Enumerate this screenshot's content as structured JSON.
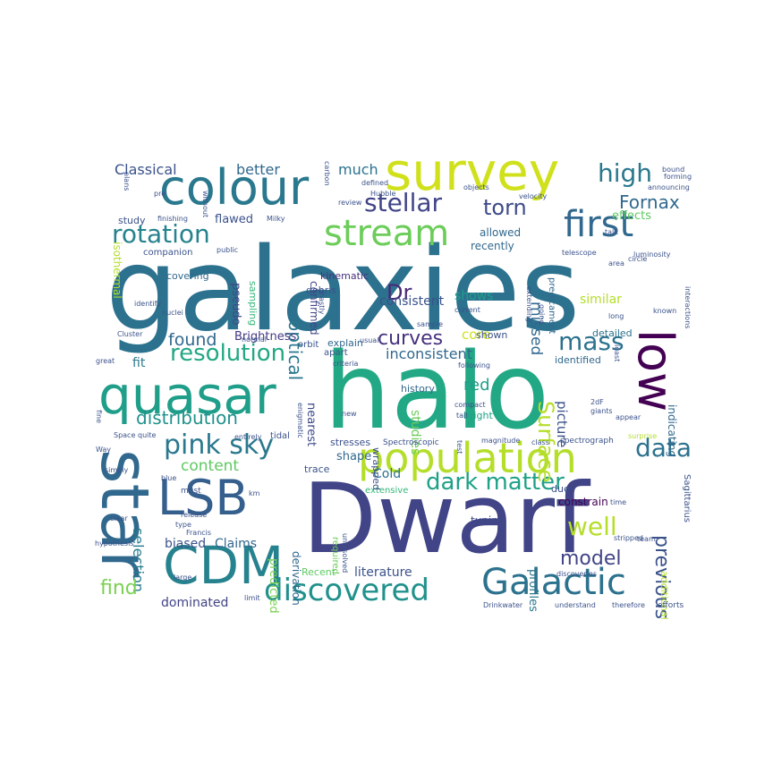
{
  "words": [
    {
      "text": "galaxies",
      "color": "#2c728e"
    },
    {
      "text": "Dwarf",
      "color": "#414487"
    },
    {
      "text": "halo",
      "color": "#22a884"
    },
    {
      "text": "survey",
      "color": "#d0e11c"
    },
    {
      "text": "colour",
      "color": "#2a788e"
    },
    {
      "text": "quasar",
      "color": "#1f9e89"
    },
    {
      "text": "star",
      "color": "#31688e"
    },
    {
      "text": "CDM",
      "color": "#26828e"
    },
    {
      "text": "LSB",
      "color": "#355f8d"
    },
    {
      "text": "low",
      "color": "#440154"
    },
    {
      "text": "population",
      "color": "#b5de2b"
    },
    {
      "text": "Galactic",
      "color": "#2c728e"
    },
    {
      "text": "discovered",
      "color": "#21918c"
    },
    {
      "text": "stream",
      "color": "#6ccd5a"
    },
    {
      "text": "first",
      "color": "#31688e"
    },
    {
      "text": "pink sky",
      "color": "#2a788e"
    },
    {
      "text": "dark matter",
      "color": "#1fa187"
    },
    {
      "text": "rotation",
      "color": "#26828e"
    },
    {
      "text": "resolution",
      "color": "#22a884"
    },
    {
      "text": "stellar",
      "color": "#414487"
    },
    {
      "text": "high",
      "color": "#2a788e"
    },
    {
      "text": "curves",
      "color": "#46327e"
    },
    {
      "text": "mass",
      "color": "#2c728e"
    },
    {
      "text": "distribution",
      "color": "#21918c"
    },
    {
      "text": "data",
      "color": "#2c728e"
    },
    {
      "text": "model",
      "color": "#414487"
    },
    {
      "text": "Surface",
      "color": "#b5de2b"
    },
    {
      "text": "previous",
      "color": "#3b528b"
    },
    {
      "text": "well",
      "color": "#b5de2b"
    },
    {
      "text": "torn",
      "color": "#3e4a89"
    },
    {
      "text": "Fornax",
      "color": "#31688e"
    },
    {
      "text": "Dr",
      "color": "#482878"
    },
    {
      "text": "found",
      "color": "#31688e"
    },
    {
      "text": "selection",
      "color": "#287d8e"
    },
    {
      "text": "content",
      "color": "#5ec962"
    },
    {
      "text": "find",
      "color": "#7ad151"
    },
    {
      "text": "optical",
      "color": "#2a788e"
    },
    {
      "text": "missed",
      "color": "#31688e"
    },
    {
      "text": "Classical",
      "color": "#3b528b"
    },
    {
      "text": "better",
      "color": "#31688e"
    },
    {
      "text": "much",
      "color": "#2c728e"
    },
    {
      "text": "isothermal",
      "color": "#b5de2b"
    },
    {
      "text": "effects",
      "color": "#5ec962"
    },
    {
      "text": "flawed",
      "color": "#3b528b"
    },
    {
      "text": "confirmed",
      "color": "#414487"
    },
    {
      "text": "pseudo",
      "color": "#3e4a89"
    },
    {
      "text": "sampling",
      "color": "#35b779"
    },
    {
      "text": "kinematic",
      "color": "#46327e"
    },
    {
      "text": "debris",
      "color": "#3b528b"
    },
    {
      "text": "covering",
      "color": "#31688e"
    },
    {
      "text": "similar",
      "color": "#b5de2b"
    },
    {
      "text": "shows",
      "color": "#1f9e89"
    },
    {
      "text": "core",
      "color": "#d0e11c"
    },
    {
      "text": "Brightness",
      "color": "#443983"
    },
    {
      "text": "fit",
      "color": "#2a788e"
    },
    {
      "text": "inconsistent",
      "color": "#31688e"
    },
    {
      "text": "consistent",
      "color": "#3b528b"
    },
    {
      "text": "red",
      "color": "#1f9e89"
    },
    {
      "text": "studies",
      "color": "#6ccd5a"
    },
    {
      "text": "nearest",
      "color": "#3e4a89"
    },
    {
      "text": "picture",
      "color": "#3b528b"
    },
    {
      "text": "indicating",
      "color": "#31688e"
    },
    {
      "text": "shape",
      "color": "#31688e"
    },
    {
      "text": "Cold",
      "color": "#2c728e"
    },
    {
      "text": "literature",
      "color": "#3b528b"
    },
    {
      "text": "Recent",
      "color": "#5ec962"
    },
    {
      "text": "predicted",
      "color": "#7ad151"
    },
    {
      "text": "derivation",
      "color": "#31688e"
    },
    {
      "text": "profiles",
      "color": "#2a788e"
    },
    {
      "text": "dominated",
      "color": "#414487"
    },
    {
      "text": "Claims",
      "color": "#31688e"
    },
    {
      "text": "biased",
      "color": "#3b528b"
    },
    {
      "text": "constrain",
      "color": "#440154"
    },
    {
      "text": "tuning",
      "color": "#3e4a89"
    },
    {
      "text": "explain",
      "color": "#31688e"
    },
    {
      "text": "shown",
      "color": "#3b528b"
    },
    {
      "text": "bright",
      "color": "#1fa187"
    },
    {
      "text": "history",
      "color": "#31688e"
    },
    {
      "text": "allowed",
      "color": "#31688e"
    },
    {
      "text": "recently",
      "color": "#31688e"
    },
    {
      "text": "predicament",
      "color": "#31688e"
    },
    {
      "text": "detailed",
      "color": "#2c728e"
    },
    {
      "text": "identified",
      "color": "#31688e"
    },
    {
      "text": "orbit",
      "color": "#3b528b"
    },
    {
      "text": "apart",
      "color": "#3b528b"
    },
    {
      "text": "criteria",
      "color": "#3b528b"
    },
    {
      "text": "usual",
      "color": "#3b528b"
    },
    {
      "text": "stresses",
      "color": "#3b528b"
    },
    {
      "text": "trace",
      "color": "#3b528b"
    },
    {
      "text": "extensive",
      "color": "#35b779"
    },
    {
      "text": "required",
      "color": "#6ccd5a"
    },
    {
      "text": "unresolved",
      "color": "#3b528b"
    },
    {
      "text": "wrapped",
      "color": "#3b528b"
    },
    {
      "text": "tidal",
      "color": "#3b528b"
    },
    {
      "text": "Spectroscopic",
      "color": "#3b528b"
    },
    {
      "text": "magnitude",
      "color": "#3b528b"
    },
    {
      "text": "class",
      "color": "#3b528b"
    },
    {
      "text": "spectrograph",
      "color": "#3b528b"
    },
    {
      "text": "surprise",
      "color": "#b5de2b"
    },
    {
      "text": "Sagittarius",
      "color": "#3b528b"
    },
    {
      "text": "due",
      "color": "#3b528b"
    },
    {
      "text": "additional",
      "color": "#b5de2b"
    },
    {
      "text": "discoveries",
      "color": "#3b528b"
    },
    {
      "text": "stripped",
      "color": "#3b528b"
    },
    {
      "text": "time",
      "color": "#3b528b"
    },
    {
      "text": "team",
      "color": "#3b528b"
    },
    {
      "text": "understand",
      "color": "#3b528b"
    },
    {
      "text": "therefore",
      "color": "#3b528b"
    },
    {
      "text": "efforts",
      "color": "#3b528b"
    },
    {
      "text": "Drinkwater",
      "color": "#3b528b"
    },
    {
      "text": "limit",
      "color": "#3b528b"
    },
    {
      "text": "large",
      "color": "#3b528b"
    },
    {
      "text": "hypothesis",
      "color": "#3b528b"
    },
    {
      "text": "release",
      "color": "#3b528b"
    },
    {
      "text": "type",
      "color": "#3b528b"
    },
    {
      "text": "Francis",
      "color": "#3b528b"
    },
    {
      "text": "clear",
      "color": "#3b528b"
    },
    {
      "text": "km",
      "color": "#3b528b"
    },
    {
      "text": "must",
      "color": "#3b528b"
    },
    {
      "text": "blue",
      "color": "#3b528b"
    },
    {
      "text": "simply",
      "color": "#3b528b"
    },
    {
      "text": "Way",
      "color": "#3b528b"
    },
    {
      "text": "fine",
      "color": "#3b528b"
    },
    {
      "text": "Space",
      "color": "#3b528b"
    },
    {
      "text": "quite",
      "color": "#3b528b"
    },
    {
      "text": "entirely",
      "color": "#3b528b"
    },
    {
      "text": "enigmatic",
      "color": "#3b528b"
    },
    {
      "text": "great",
      "color": "#3b528b"
    },
    {
      "text": "Cluster",
      "color": "#3b528b"
    },
    {
      "text": "nuclei",
      "color": "#3b528b"
    },
    {
      "text": "normal",
      "color": "#3b528b"
    },
    {
      "text": "identify",
      "color": "#3b528b"
    },
    {
      "text": "companion",
      "color": "#3b528b"
    },
    {
      "text": "study",
      "color": "#3b528b"
    },
    {
      "text": "finishing",
      "color": "#3b528b"
    },
    {
      "text": "public",
      "color": "#3b528b"
    },
    {
      "text": "Milky",
      "color": "#3b528b"
    },
    {
      "text": "without",
      "color": "#3b528b"
    },
    {
      "text": "plans",
      "color": "#3b528b"
    },
    {
      "text": "pre",
      "color": "#3b528b"
    },
    {
      "text": "carbon",
      "color": "#3b528b"
    },
    {
      "text": "review",
      "color": "#3b528b"
    },
    {
      "text": "defined",
      "color": "#3b528b"
    },
    {
      "text": "Hubble",
      "color": "#3b528b"
    },
    {
      "text": "objects",
      "color": "#3b528b"
    },
    {
      "text": "velocity",
      "color": "#3b528b"
    },
    {
      "text": "bound",
      "color": "#3b528b"
    },
    {
      "text": "forming",
      "color": "#3b528b"
    },
    {
      "text": "announcing",
      "color": "#3b528b"
    },
    {
      "text": "talk",
      "color": "#3b528b"
    },
    {
      "text": "telescope",
      "color": "#3b528b"
    },
    {
      "text": "luminosity",
      "color": "#3b528b"
    },
    {
      "text": "circle",
      "color": "#3b528b"
    },
    {
      "text": "area",
      "color": "#3b528b"
    },
    {
      "text": "known",
      "color": "#3b528b"
    },
    {
      "text": "long",
      "color": "#3b528b"
    },
    {
      "text": "interactions",
      "color": "#3b528b"
    },
    {
      "text": "extending",
      "color": "#3b528b"
    },
    {
      "text": "ghastly",
      "color": "#3b528b"
    },
    {
      "text": "current",
      "color": "#3b528b"
    },
    {
      "text": "sample",
      "color": "#3b528b"
    },
    {
      "text": "going",
      "color": "#3b528b"
    },
    {
      "text": "following",
      "color": "#3b528b"
    },
    {
      "text": "least",
      "color": "#3b528b"
    },
    {
      "text": "2dF",
      "color": "#3b528b"
    },
    {
      "text": "giants",
      "color": "#3b528b"
    },
    {
      "text": "appear",
      "color": "#3b528b"
    },
    {
      "text": "compact",
      "color": "#3b528b"
    },
    {
      "text": "tail",
      "color": "#3b528b"
    },
    {
      "text": "new",
      "color": "#3b528b"
    },
    {
      "text": "test",
      "color": "#3b528b"
    }
  ]
}
